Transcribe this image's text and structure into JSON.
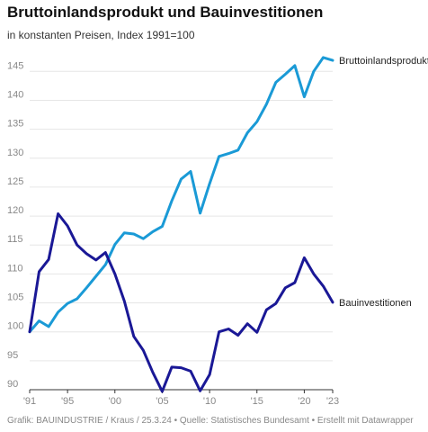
{
  "title": "Bruttoinlandsprodukt und Bauinvestitionen",
  "subtitle": "in konstanten Preisen, Index 1991=100",
  "footer": "Grafik: BAUINDUSTRIE / Kraus / 25.3.24 • Quelle: Statistisches Bundesamt • Erstellt mit Datawrapper",
  "chart_data": {
    "type": "line",
    "title": "Bruttoinlandsprodukt und Bauinvestitionen",
    "subtitle": "in konstanten Preisen, Index 1991=100",
    "xlabel": "",
    "ylabel": "",
    "x": [
      1991,
      1992,
      1993,
      1994,
      1995,
      1996,
      1997,
      1998,
      1999,
      2000,
      2001,
      2002,
      2003,
      2004,
      2005,
      2006,
      2007,
      2008,
      2009,
      2010,
      2011,
      2012,
      2013,
      2014,
      2015,
      2016,
      2017,
      2018,
      2019,
      2020,
      2021,
      2022,
      2023
    ],
    "xlim": [
      1991,
      2023
    ],
    "ylim": [
      90,
      148
    ],
    "y_ticks": [
      90,
      95,
      100,
      105,
      110,
      115,
      120,
      125,
      130,
      135,
      140,
      145
    ],
    "x_ticks": [
      {
        "value": 1991,
        "label": "'91"
      },
      {
        "value": 1995,
        "label": "'95"
      },
      {
        "value": 2000,
        "label": "'00"
      },
      {
        "value": 2005,
        "label": "'05"
      },
      {
        "value": 2010,
        "label": "'10"
      },
      {
        "value": 2015,
        "label": "'15"
      },
      {
        "value": 2020,
        "label": "'20"
      },
      {
        "value": 2023,
        "label": "'23"
      }
    ],
    "grid": true,
    "legend": "direct-labels-right",
    "series": [
      {
        "name": "Bruttoinlandsprodukt",
        "color": "#1a9ad6",
        "values": [
          100,
          101.9,
          100.9,
          103.4,
          104.9,
          105.7,
          107.6,
          109.6,
          111.6,
          115.1,
          117.1,
          116.9,
          116.1,
          117.3,
          118.2,
          122.6,
          126.4,
          127.7,
          120.5,
          125.6,
          130.3,
          130.8,
          131.4,
          134.4,
          136.3,
          139.3,
          143.1,
          144.5,
          146.0,
          140.6,
          145.0,
          147.4,
          146.9
        ]
      },
      {
        "name": "Bauinvestitionen",
        "color": "#1a1896",
        "values": [
          100,
          110.4,
          112.5,
          120.4,
          118.3,
          115.0,
          113.5,
          112.4,
          113.7,
          110.0,
          105.3,
          99.2,
          96.8,
          93.0,
          89.7,
          93.9,
          93.8,
          93.2,
          89.8,
          92.6,
          100.0,
          100.5,
          99.4,
          101.4,
          99.9,
          103.8,
          104.9,
          107.6,
          108.5,
          112.8,
          110.0,
          107.9,
          105.1
        ]
      }
    ]
  }
}
